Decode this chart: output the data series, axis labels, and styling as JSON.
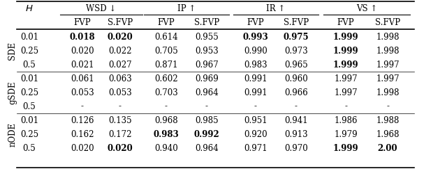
{
  "row_groups": [
    {
      "label": "SDE",
      "rows": [
        {
          "H": "0.01",
          "wsd_fvp": "0.018",
          "wsd_sfvp": "0.020",
          "ip_fvp": "0.614",
          "ip_sfvp": "0.955",
          "ir_fvp": "0.993",
          "ir_sfvp": "0.975",
          "vs_fvp": "1.999",
          "vs_sfvp": "1.998",
          "bold": [
            "wsd_fvp",
            "wsd_sfvp",
            "ir_fvp",
            "ir_sfvp",
            "vs_fvp"
          ]
        },
        {
          "H": "0.25",
          "wsd_fvp": "0.020",
          "wsd_sfvp": "0.022",
          "ip_fvp": "0.705",
          "ip_sfvp": "0.953",
          "ir_fvp": "0.990",
          "ir_sfvp": "0.973",
          "vs_fvp": "1.999",
          "vs_sfvp": "1.998",
          "bold": [
            "vs_fvp"
          ]
        },
        {
          "H": "0.5",
          "wsd_fvp": "0.021",
          "wsd_sfvp": "0.027",
          "ip_fvp": "0.871",
          "ip_sfvp": "0.967",
          "ir_fvp": "0.983",
          "ir_sfvp": "0.965",
          "vs_fvp": "1.999",
          "vs_sfvp": "1.997",
          "bold": [
            "vs_fvp"
          ]
        }
      ]
    },
    {
      "label": "gSDE",
      "rows": [
        {
          "H": "0.01",
          "wsd_fvp": "0.061",
          "wsd_sfvp": "0.063",
          "ip_fvp": "0.602",
          "ip_sfvp": "0.969",
          "ir_fvp": "0.991",
          "ir_sfvp": "0.960",
          "vs_fvp": "1.997",
          "vs_sfvp": "1.997",
          "bold": []
        },
        {
          "H": "0.25",
          "wsd_fvp": "0.053",
          "wsd_sfvp": "0.053",
          "ip_fvp": "0.703",
          "ip_sfvp": "0.964",
          "ir_fvp": "0.991",
          "ir_sfvp": "0.966",
          "vs_fvp": "1.997",
          "vs_sfvp": "1.998",
          "bold": []
        },
        {
          "H": "0.5",
          "wsd_fvp": "-",
          "wsd_sfvp": "-",
          "ip_fvp": "-",
          "ip_sfvp": "-",
          "ir_fvp": "-",
          "ir_sfvp": "-",
          "vs_fvp": "-",
          "vs_sfvp": "-",
          "bold": []
        }
      ]
    },
    {
      "label": "nODE",
      "rows": [
        {
          "H": "0.01",
          "wsd_fvp": "0.126",
          "wsd_sfvp": "0.135",
          "ip_fvp": "0.968",
          "ip_sfvp": "0.985",
          "ir_fvp": "0.951",
          "ir_sfvp": "0.941",
          "vs_fvp": "1.986",
          "vs_sfvp": "1.988",
          "bold": []
        },
        {
          "H": "0.25",
          "wsd_fvp": "0.162",
          "wsd_sfvp": "0.172",
          "ip_fvp": "0.983",
          "ip_sfvp": "0.992",
          "ir_fvp": "0.920",
          "ir_sfvp": "0.913",
          "vs_fvp": "1.979",
          "vs_sfvp": "1.968",
          "bold": [
            "ip_fvp",
            "ip_sfvp"
          ]
        },
        {
          "H": "0.5",
          "wsd_fvp": "0.020",
          "wsd_sfvp": "0.020",
          "ip_fvp": "0.940",
          "ip_sfvp": "0.964",
          "ir_fvp": "0.971",
          "ir_sfvp": "0.970",
          "vs_fvp": "1.999",
          "vs_sfvp": "2.00",
          "bold": [
            "wsd_sfvp",
            "vs_fvp",
            "vs_sfvp"
          ]
        }
      ]
    }
  ],
  "col_keys": [
    "wsd_fvp",
    "wsd_sfvp",
    "ip_fvp",
    "ip_sfvp",
    "ir_fvp",
    "ir_sfvp",
    "vs_fvp",
    "vs_sfvp"
  ],
  "top_headers": [
    "WSD ↓",
    "IP ↑",
    "IR ↑",
    "VS ↑"
  ],
  "sub_headers": [
    "FVP",
    "S.FVP",
    "FVP",
    "S.FVP",
    "FVP",
    "S.FVP",
    "FVP",
    "S.FVP"
  ],
  "background_color": "#ffffff",
  "font_size": 8.5,
  "header_font_size": 8.5
}
